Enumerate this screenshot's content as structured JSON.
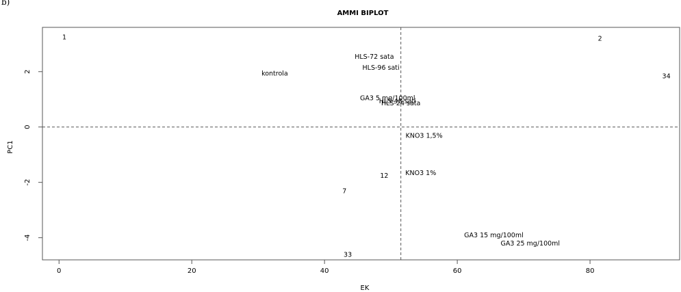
{
  "panel_tag": "b)",
  "chart_data": {
    "type": "scatter",
    "title": "AMMI BIPLOT",
    "xlabel": "EK",
    "ylabel": "PC1",
    "xlim": [
      -2.5,
      93.5
    ],
    "ylim": [
      -4.8,
      3.6
    ],
    "x_ticks": [
      0,
      20,
      40,
      60,
      80
    ],
    "x_tick_labels": [
      "0",
      "20",
      "40",
      "60",
      "80"
    ],
    "y_ticks": [
      -4,
      -2,
      0,
      2
    ],
    "y_tick_labels": [
      "-4",
      "-2",
      "0",
      "2"
    ],
    "ref_lines": {
      "x": 51.5,
      "y": 0
    },
    "grid": false,
    "points": [
      {
        "label": "1",
        "x": 0.8,
        "y": 3.25
      },
      {
        "label": "2",
        "x": 81.5,
        "y": 3.2
      },
      {
        "label": "34",
        "x": 91.5,
        "y": 1.85
      },
      {
        "label": "HLS-72 sata",
        "x": 47.5,
        "y": 2.55
      },
      {
        "label": "HLS-96 sati",
        "x": 48.5,
        "y": 2.15
      },
      {
        "label": "kontrola",
        "x": 32.5,
        "y": 1.95
      },
      {
        "label": "GA3 5 mg/100ml",
        "x": 49.5,
        "y": 1.05
      },
      {
        "label": "HLS-48 sati",
        "x": 51.0,
        "y": 0.95
      },
      {
        "label": "HLS-24 sata",
        "x": 51.5,
        "y": 0.87
      },
      {
        "label": "KNO3 1,5%",
        "x": 55.0,
        "y": -0.3
      },
      {
        "label": "KNO3 1%",
        "x": 54.5,
        "y": -1.65
      },
      {
        "label": "12",
        "x": 49.0,
        "y": -1.75
      },
      {
        "label": "7",
        "x": 43.0,
        "y": -2.3
      },
      {
        "label": "GA3 15 mg/100ml",
        "x": 65.5,
        "y": -3.9
      },
      {
        "label": "GA3 25 mg/100ml",
        "x": 71.0,
        "y": -4.2
      },
      {
        "label": "33",
        "x": 43.5,
        "y": -4.6
      }
    ]
  }
}
